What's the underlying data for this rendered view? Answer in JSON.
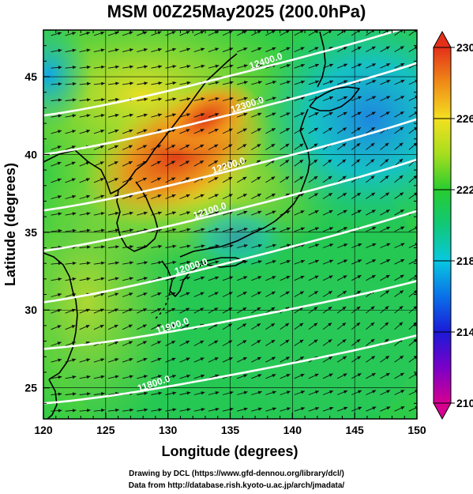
{
  "title": "MSM 00Z25May2025 (200.0hPa)",
  "map": {
    "lon_range": [
      120,
      150
    ],
    "lat_range": [
      23,
      48
    ],
    "lon_ticks": [
      120,
      125,
      130,
      135,
      140,
      145,
      150
    ],
    "lat_ticks": [
      25,
      30,
      35,
      40,
      45
    ],
    "xlabel": "Longitude (degrees)",
    "ylabel": "Latitude  (degrees)",
    "field": "temperature shading + geopotential height contours + wind streamlines",
    "colorbar": {
      "min": 210,
      "max": 230,
      "ticks": [
        210,
        214,
        218,
        222,
        226,
        230
      ]
    },
    "contours": [
      {
        "label": "11800.0",
        "lat_at_120": 24.0
      },
      {
        "label": "11900.0",
        "lat_at_120": 27.5
      },
      {
        "label": "12000.0",
        "lat_at_120": 30.5
      },
      {
        "label": "12100.0",
        "lat_at_120": 33.8
      },
      {
        "label": "12200.0",
        "lat_at_120": 36.4
      },
      {
        "label": "12300.0",
        "lat_at_120": 40.0
      },
      {
        "label": "12400.0",
        "lat_at_120": 42.5
      }
    ],
    "colors": {
      "warm_core": "#e8401a",
      "cool_core": "#1f8fd8",
      "contour": "#ffffff",
      "coast": "#000000"
    }
  },
  "credits": {
    "line1": "Drawing by DCL (https://www.gfd-dennou.org/library/dcl/)",
    "line2": "Data from http://database.rish.kyoto-u.ac.jp/arch/jmadata/"
  }
}
